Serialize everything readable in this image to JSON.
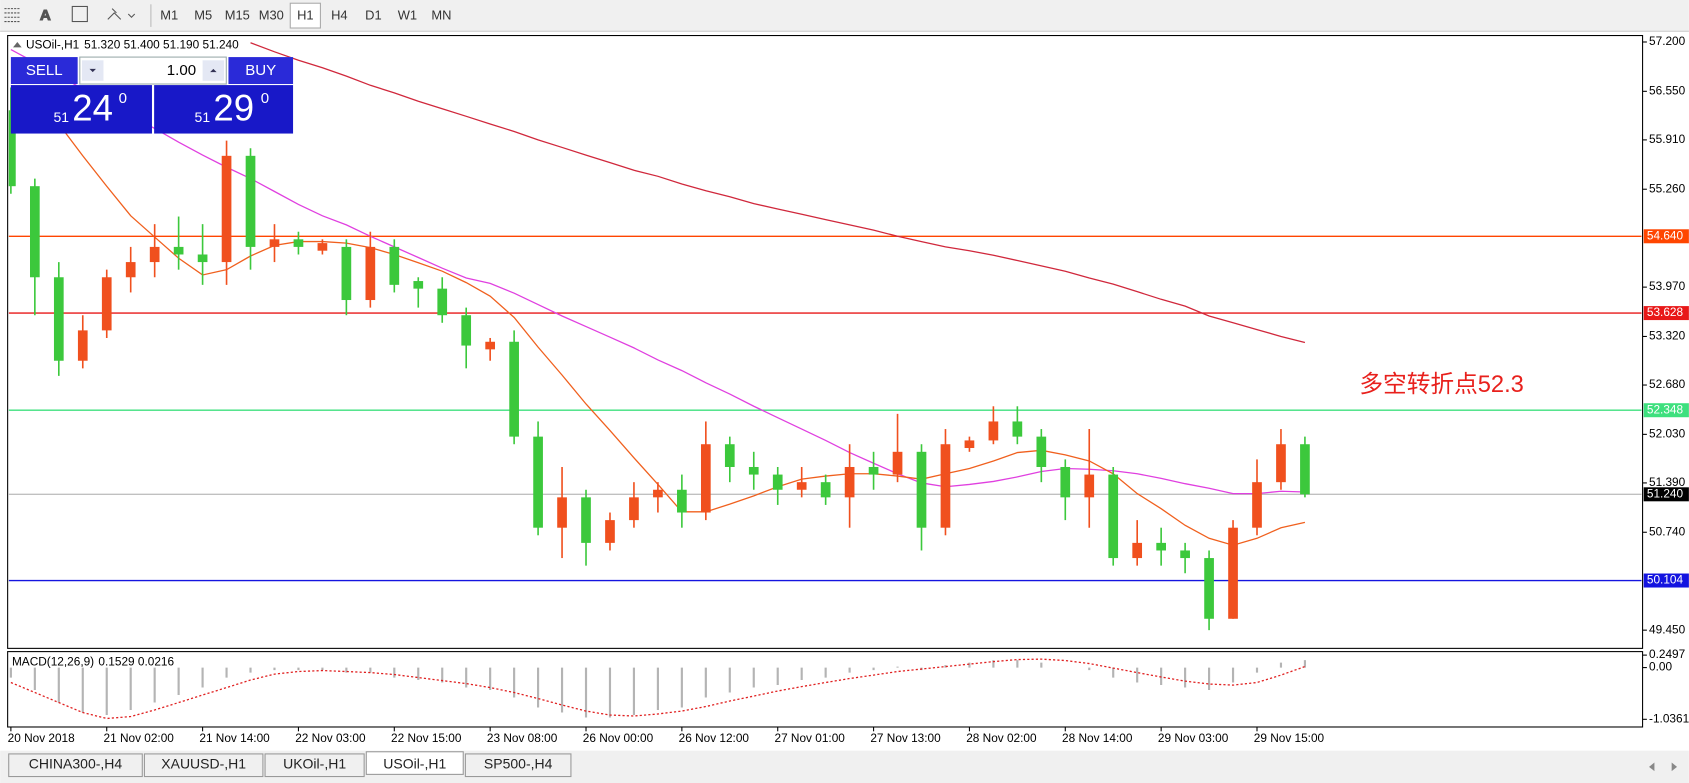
{
  "toolbar": {
    "timeframes": [
      "M1",
      "M5",
      "M15",
      "M30",
      "H1",
      "H4",
      "D1",
      "W1",
      "MN"
    ],
    "active_timeframe": 4
  },
  "trade_panel": {
    "sell": "SELL",
    "buy": "BUY",
    "lots": "1.00",
    "bid": {
      "big": "51",
      "main": "24",
      "sup": "0"
    },
    "ask": {
      "big": "51",
      "main": "29",
      "sup": "0"
    }
  },
  "chart_data": {
    "type": "candlestick",
    "title": "USOil-,H1",
    "ohlc": "51.320 51.400 51.190 51.240",
    "categories": [
      "20 Nov 2018",
      null,
      null,
      null,
      "21 Nov 02:00",
      null,
      null,
      null,
      "21 Nov 14:00",
      null,
      null,
      null,
      "22 Nov 03:00",
      null,
      null,
      null,
      "22 Nov 15:00",
      null,
      null,
      null,
      "23 Nov 08:00",
      null,
      null,
      null,
      "26 Nov 00:00",
      null,
      null,
      null,
      "26 Nov 12:00",
      null,
      null,
      null,
      "27 Nov 01:00",
      null,
      null,
      null,
      "27 Nov 13:00",
      null,
      null,
      null,
      "28 Nov 02:00",
      null,
      null,
      null,
      "28 Nov 14:00",
      null,
      null,
      null,
      "29 Nov 03:00",
      null,
      null,
      null,
      "29 Nov 15:00",
      null,
      null
    ],
    "open": [
      56.3,
      55.3,
      54.1,
      53.0,
      53.4,
      54.1,
      54.3,
      54.5,
      54.4,
      54.3,
      55.7,
      54.5,
      54.6,
      54.45,
      54.5,
      53.8,
      54.5,
      54.05,
      53.95,
      53.6,
      53.15,
      53.25,
      52.0,
      50.8,
      51.2,
      50.6,
      50.9,
      51.2,
      51.3,
      51.0,
      51.9,
      51.6,
      51.5,
      51.3,
      51.4,
      51.2,
      51.6,
      51.5,
      51.8,
      50.8,
      51.85,
      51.95,
      52.2,
      52.0,
      51.6,
      51.2,
      51.5,
      50.4,
      50.6,
      50.5,
      50.4,
      49.6,
      50.8,
      51.4,
      51.9
    ],
    "high": [
      56.6,
      55.4,
      54.3,
      53.6,
      54.2,
      54.5,
      54.8,
      54.9,
      54.8,
      55.9,
      55.8,
      54.8,
      54.7,
      54.6,
      54.6,
      54.7,
      54.6,
      54.1,
      54.1,
      53.7,
      53.3,
      53.4,
      52.2,
      51.6,
      51.3,
      51.0,
      51.4,
      51.4,
      51.5,
      52.2,
      52.0,
      51.8,
      51.6,
      51.6,
      51.5,
      51.9,
      51.8,
      52.3,
      51.9,
      52.1,
      52.0,
      52.4,
      52.4,
      52.1,
      51.7,
      52.1,
      51.6,
      50.9,
      50.8,
      50.6,
      50.5,
      50.9,
      51.7,
      52.1,
      52.0
    ],
    "low": [
      55.2,
      53.6,
      52.8,
      52.9,
      53.3,
      53.9,
      54.1,
      54.2,
      54.0,
      54.0,
      54.2,
      54.3,
      54.4,
      54.4,
      53.6,
      53.7,
      53.9,
      53.7,
      53.5,
      52.9,
      53.0,
      51.9,
      50.7,
      50.4,
      50.3,
      50.5,
      50.8,
      51.0,
      50.8,
      50.9,
      51.4,
      51.3,
      51.1,
      51.2,
      51.1,
      50.8,
      51.3,
      51.4,
      50.5,
      50.7,
      51.8,
      51.9,
      51.9,
      51.4,
      50.9,
      50.8,
      50.3,
      50.3,
      50.3,
      50.2,
      49.45,
      49.6,
      50.7,
      51.3,
      51.2
    ],
    "close": [
      55.3,
      54.1,
      53.0,
      53.4,
      54.1,
      54.3,
      54.5,
      54.4,
      54.3,
      55.7,
      54.5,
      54.6,
      54.5,
      54.55,
      53.8,
      54.5,
      54.0,
      53.95,
      53.6,
      53.2,
      53.25,
      52.0,
      50.8,
      51.2,
      50.6,
      50.9,
      51.2,
      51.3,
      51.0,
      51.9,
      51.6,
      51.5,
      51.3,
      51.4,
      51.2,
      51.6,
      51.5,
      51.8,
      50.8,
      51.9,
      51.95,
      52.2,
      52.0,
      51.6,
      51.2,
      51.5,
      50.4,
      50.6,
      50.5,
      50.4,
      49.6,
      50.8,
      51.4,
      51.9,
      51.24
    ],
    "bull_color": "#f0501e",
    "bear_color": "#3cc83c",
    "moving_averages": [
      {
        "color": "#d0283c",
        "values": [
          null,
          null,
          null,
          null,
          null,
          null,
          null,
          null,
          null,
          null,
          57.19,
          57.07,
          56.96,
          56.86,
          56.75,
          56.63,
          56.53,
          56.42,
          56.32,
          56.22,
          56.12,
          56.02,
          55.91,
          55.81,
          55.71,
          55.61,
          55.51,
          55.43,
          55.33,
          55.24,
          55.16,
          55.07,
          55.0,
          54.93,
          54.86,
          54.79,
          54.72,
          54.64,
          54.57,
          54.5,
          54.45,
          54.39,
          54.32,
          54.25,
          54.18,
          54.09,
          54.01,
          53.91,
          53.81,
          53.72,
          53.59,
          53.5,
          53.41,
          53.32,
          53.24
        ]
      },
      {
        "color": "#e040e0",
        "values": [
          57.1,
          56.93,
          56.76,
          56.58,
          56.41,
          56.23,
          56.06,
          55.88,
          55.71,
          55.55,
          55.4,
          55.23,
          55.06,
          54.91,
          54.79,
          54.64,
          54.5,
          54.36,
          54.22,
          54.09,
          54.02,
          53.89,
          53.74,
          53.59,
          53.45,
          53.31,
          53.17,
          53.01,
          52.87,
          52.71,
          52.56,
          52.4,
          52.25,
          52.1,
          51.95,
          51.79,
          51.65,
          51.51,
          51.39,
          51.34,
          51.37,
          51.41,
          51.47,
          51.54,
          51.58,
          51.57,
          51.55,
          51.51,
          51.45,
          51.38,
          51.32,
          51.25,
          51.25,
          51.28,
          51.27
        ]
      },
      {
        "color": "#f0601e",
        "values": [
          null,
          null,
          56.12,
          55.7,
          55.3,
          54.91,
          54.63,
          54.35,
          54.13,
          54.2,
          54.38,
          54.52,
          54.57,
          54.57,
          54.55,
          54.49,
          54.4,
          54.29,
          54.18,
          54.03,
          53.85,
          53.57,
          53.18,
          52.81,
          52.43,
          52.08,
          51.72,
          51.37,
          51.01,
          51.01,
          51.11,
          51.22,
          51.34,
          51.44,
          51.48,
          51.51,
          51.51,
          51.48,
          51.44,
          51.51,
          51.58,
          51.68,
          51.79,
          51.82,
          51.76,
          51.68,
          51.51,
          51.25,
          51.05,
          50.83,
          50.66,
          50.57,
          50.66,
          50.8,
          50.87
        ]
      }
    ],
    "ylim": [
      49.21,
      57.285
    ],
    "yticks": [
      {
        "value": 57.2,
        "label": "57.200"
      },
      {
        "value": 56.55,
        "label": "56.550"
      },
      {
        "value": 55.91,
        "label": "55.910"
      },
      {
        "value": 55.26,
        "label": "55.260"
      },
      {
        "value": 53.97,
        "label": "53.970"
      },
      {
        "value": 53.32,
        "label": "53.320"
      },
      {
        "value": 52.68,
        "label": "52.680"
      },
      {
        "value": 52.03,
        "label": "52.030"
      },
      {
        "value": 51.39,
        "label": "51.390"
      },
      {
        "value": 50.74,
        "label": "50.740"
      },
      {
        "value": 49.45,
        "label": "49.450"
      }
    ],
    "levels": [
      {
        "value": 54.64,
        "label": "54.640",
        "color": "#ff4500"
      },
      {
        "value": 53.628,
        "label": "53.628",
        "color": "#e81818"
      },
      {
        "value": 52.348,
        "label": "52.348",
        "color": "#3ee07e"
      },
      {
        "value": 51.24,
        "label": "51.240",
        "color": "#c0c0c0",
        "box": "#000000"
      },
      {
        "value": 50.104,
        "label": "50.104",
        "color": "#1414e0"
      }
    ],
    "annotation": {
      "text": "多空转折点52.3",
      "color": "#e8201c"
    },
    "macd": {
      "title": "MACD(12,26,9)",
      "values_text": "0.1529 0.0216",
      "ylim": [
        -1.19,
        0.32
      ],
      "yticks": [
        {
          "value": 0.2497,
          "label": "0.2497"
        },
        {
          "value": 0,
          "label": "0.00"
        },
        -1.0361
      ],
      "histogram": [
        -0.2,
        -0.45,
        -0.7,
        -0.9,
        -0.95,
        -0.85,
        -0.7,
        -0.55,
        -0.4,
        -0.2,
        -0.1,
        -0.05,
        -0.05,
        -0.05,
        -0.1,
        -0.1,
        -0.2,
        -0.25,
        -0.3,
        -0.4,
        -0.45,
        -0.6,
        -0.8,
        -0.9,
        -1.0,
        -1.0,
        -0.95,
        -0.85,
        -0.8,
        -0.6,
        -0.5,
        -0.4,
        -0.35,
        -0.25,
        -0.2,
        -0.1,
        -0.05,
        0.02,
        -0.05,
        0.05,
        0.1,
        0.15,
        0.15,
        0.1,
        0.0,
        -0.05,
        -0.2,
        -0.3,
        -0.35,
        -0.4,
        -0.45,
        -0.3,
        -0.1,
        0.1,
        0.15
      ],
      "histogram_color": "#b4b4b4",
      "signal": [
        -0.3,
        -0.5,
        -0.7,
        -0.9,
        -1.02,
        -0.98,
        -0.85,
        -0.7,
        -0.55,
        -0.4,
        -0.25,
        -0.13,
        -0.08,
        -0.06,
        -0.08,
        -0.1,
        -0.14,
        -0.2,
        -0.26,
        -0.32,
        -0.4,
        -0.5,
        -0.62,
        -0.75,
        -0.87,
        -0.95,
        -0.97,
        -0.93,
        -0.87,
        -0.78,
        -0.67,
        -0.57,
        -0.47,
        -0.38,
        -0.3,
        -0.22,
        -0.15,
        -0.08,
        -0.03,
        0.02,
        0.07,
        0.12,
        0.16,
        0.17,
        0.14,
        0.08,
        -0.01,
        -0.1,
        -0.19,
        -0.27,
        -0.33,
        -0.35,
        -0.3,
        -0.15,
        0.02
      ],
      "signal_color": "#e02020"
    }
  },
  "tabs": [
    "CHINA300-,H4",
    "XAUUSD-,H1",
    "UKOil-,H1",
    "USOil-,H1",
    "SP500-,H4"
  ],
  "active_tab": 3
}
